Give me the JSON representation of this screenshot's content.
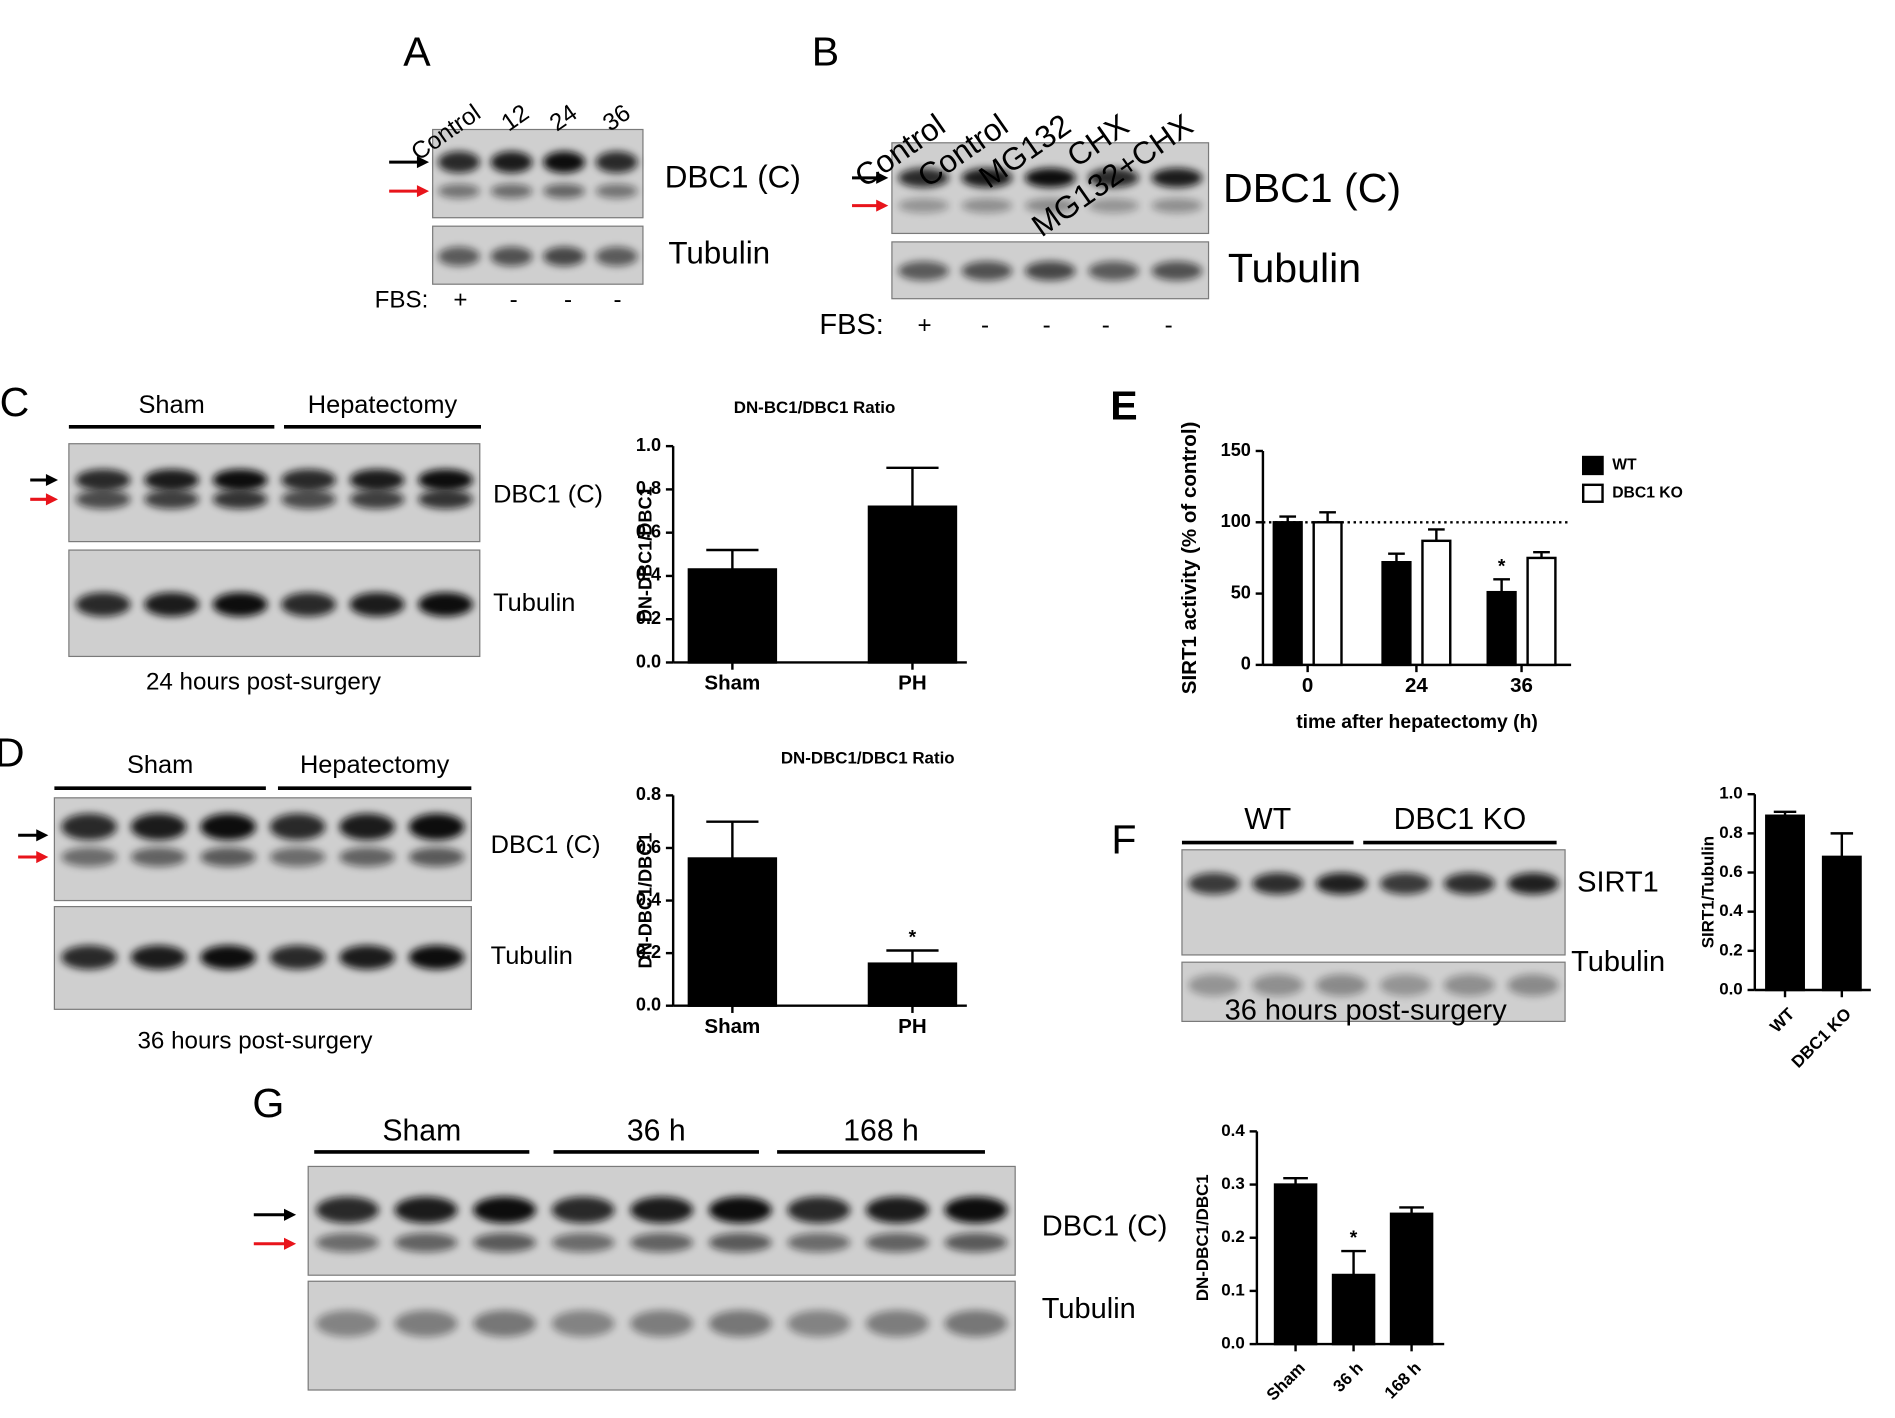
{
  "blots": {
    "A": {
      "panel": "A",
      "lanes": [
        "Control",
        "12",
        "24",
        "36"
      ],
      "bands": [
        "DBC1 (C)",
        "Tubulin"
      ],
      "fbs_label": "FBS:",
      "fbs": [
        "+",
        "-",
        "-",
        "-"
      ]
    },
    "B": {
      "panel": "B",
      "lanes": [
        "Control",
        "Control",
        "MG132",
        "CHX",
        "MG132+CHX"
      ],
      "bands": [
        "DBC1 (C)",
        "Tubulin"
      ],
      "fbs_label": "FBS:",
      "fbs": [
        "+",
        "-",
        "-",
        "-",
        "-"
      ]
    },
    "C": {
      "panel": "C",
      "groups": [
        "Sham",
        "Hepatectomy"
      ],
      "bands": [
        "DBC1 (C)",
        "Tubulin"
      ],
      "caption": "24 hours post-surgery"
    },
    "D": {
      "panel": "D",
      "groups": [
        "Sham",
        "Hepatectomy"
      ],
      "bands": [
        "DBC1 (C)",
        "Tubulin"
      ],
      "caption": "36 hours post-surgery"
    },
    "F": {
      "panel": "F",
      "groups": [
        "WT",
        "DBC1 KO"
      ],
      "bands": [
        "SIRT1",
        "Tubulin"
      ],
      "caption": "36 hours post-surgery"
    },
    "G": {
      "panel": "G",
      "groups": [
        "Sham",
        "36 h",
        "168 h"
      ],
      "bands": [
        "DBC1 (C)",
        "Tubulin"
      ]
    }
  },
  "chart_data": [
    {
      "type": "bar",
      "title": "DN-BC1/DBC1 Ratio",
      "y_label": "DN-DBC1/DBC1",
      "categories": [
        "Sham",
        "PH"
      ],
      "values": [
        0.43,
        0.72
      ],
      "errors": [
        0.09,
        0.18
      ],
      "color": "#000000",
      "ylim": [
        0,
        1
      ],
      "yticks": [
        {
          "value": 0,
          "label": "0.0"
        },
        0.2,
        0.4,
        0.6,
        0.8,
        {
          "value": 1,
          "label": "1.0"
        }
      ]
    },
    {
      "type": "bar",
      "title": "DN-DBC1/DBC1 Ratio",
      "y_label": "DN-DBC1/DBC1",
      "categories": [
        "Sham",
        "PH"
      ],
      "values": [
        0.56,
        0.16
      ],
      "errors": [
        0.14,
        0.05
      ],
      "significance_labels": [
        null,
        "*"
      ],
      "color": "#000000",
      "ylim": [
        0,
        0.8
      ],
      "yticks": [
        {
          "value": 0,
          "label": "0.0"
        },
        0.2,
        0.4,
        0.6,
        0.8
      ]
    },
    {
      "type": "bar",
      "panel": "E",
      "y_label": "SIRT1 activity (% of control)",
      "x_label": "time after hepatectomy (h)",
      "categories": [
        "0",
        "24",
        "36"
      ],
      "series": [
        {
          "name": "WT",
          "color": "#000000",
          "values": [
            100,
            72,
            51
          ],
          "errors": [
            4,
            6,
            9
          ],
          "significance_labels": [
            null,
            null,
            "*"
          ]
        },
        {
          "name": "DBC1 KO",
          "color": "#ffffff",
          "values": [
            100,
            87,
            75
          ],
          "errors": [
            7,
            8,
            4
          ]
        }
      ],
      "ylim": [
        0,
        150
      ],
      "yticks": [
        0,
        50,
        100,
        150
      ],
      "reference_line": 100,
      "legend": "upper right"
    },
    {
      "type": "bar",
      "y_label": "SIRT1/Tubulin",
      "categories": [
        "WT",
        "DBC1 KO"
      ],
      "values": [
        0.89,
        0.68
      ],
      "errors": [
        0.02,
        0.12
      ],
      "color": "#000000",
      "ylim": [
        0,
        1
      ],
      "yticks": [
        {
          "value": 0,
          "label": "0.0"
        },
        0.2,
        0.4,
        0.6,
        0.8,
        {
          "value": 1,
          "label": "1.0"
        }
      ]
    },
    {
      "type": "bar",
      "y_label": "DN-DBC1/DBC1",
      "categories": [
        "Sham",
        "36 h",
        "168 h"
      ],
      "values": [
        0.3,
        0.13,
        0.245
      ],
      "errors": [
        0.012,
        0.045,
        0.012
      ],
      "significance_labels": [
        null,
        "*",
        null
      ],
      "color": "#000000",
      "ylim": [
        0,
        0.4
      ],
      "yticks": [
        {
          "value": 0,
          "label": "0.0"
        },
        0.1,
        0.2,
        0.3,
        0.4
      ]
    }
  ]
}
